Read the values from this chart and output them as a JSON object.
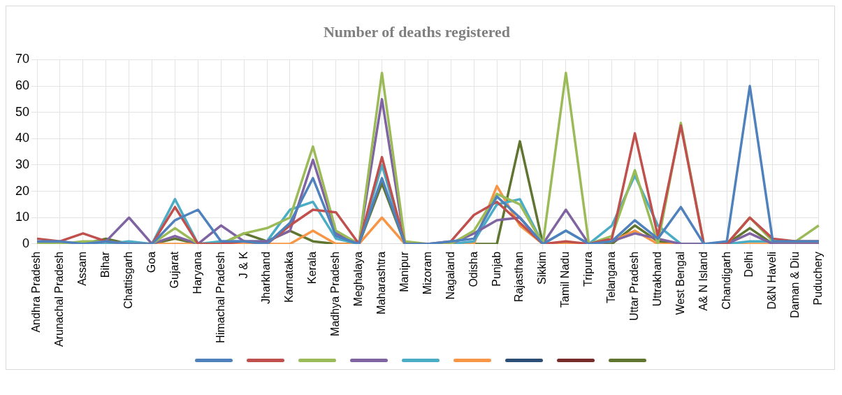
{
  "chart_data": {
    "type": "line",
    "title": "Number of deaths registered",
    "categories": [
      "Andhra Pradesh",
      "Arunachal Pradesh",
      "Assam",
      "Bihar",
      "Chattisgarh",
      "Goa",
      "Gujarat",
      "Haryana",
      "Himachal Pradesh",
      "J & K",
      "Jharkhand",
      "Karnataka",
      "Kerala",
      "Madhya Pradesh",
      "Meghalaya",
      "Maharashtra",
      "Manipur",
      "Mizoram",
      "Nagaland",
      "Odisha",
      "Punjab",
      "Rajasthan",
      "Sikkim",
      "Tamil Nadu",
      "Tripura",
      "Telangana",
      "Uttar Pradesh",
      "Uttrakhand",
      "West Bengal",
      "A& N Island",
      "Chandigarh",
      "Delhi",
      "D&N Haveli",
      "Daman & Diu",
      "Puduchery"
    ],
    "series": [
      {
        "color": "#4f81bd",
        "values": [
          1,
          1,
          0,
          1,
          0,
          0,
          9,
          13,
          1,
          1,
          0,
          8,
          25,
          3,
          0,
          25,
          0,
          0,
          1,
          2,
          18,
          10,
          0,
          5,
          0,
          1,
          9,
          2,
          14,
          0,
          1,
          60,
          1,
          1,
          1
        ]
      },
      {
        "color": "#c0504d",
        "values": [
          2,
          1,
          4,
          1,
          0,
          0,
          14,
          0,
          0,
          1,
          0,
          7,
          13,
          12,
          0,
          33,
          0,
          0,
          1,
          11,
          16,
          8,
          0,
          1,
          0,
          2,
          42,
          3,
          45,
          0,
          0,
          10,
          2,
          1,
          1
        ]
      },
      {
        "color": "#9bbb59",
        "values": [
          0,
          0,
          1,
          1,
          0,
          0,
          6,
          0,
          0,
          4,
          6,
          10,
          37,
          5,
          0,
          65,
          1,
          0,
          0,
          5,
          19,
          15,
          0,
          65,
          0,
          3,
          28,
          0,
          46,
          0,
          0,
          10,
          1,
          1,
          7
        ]
      },
      {
        "color": "#8064a2",
        "values": [
          0,
          0,
          0,
          1,
          10,
          0,
          3,
          0,
          7,
          1,
          1,
          5,
          32,
          4,
          0,
          55,
          0,
          0,
          0,
          4,
          9,
          10,
          0,
          13,
          0,
          1,
          4,
          2,
          0,
          0,
          0,
          4,
          0,
          0,
          0
        ]
      },
      {
        "color": "#4bacc6",
        "values": [
          0,
          0,
          0,
          0,
          1,
          0,
          17,
          0,
          1,
          1,
          1,
          13,
          16,
          2,
          0,
          30,
          0,
          0,
          0,
          1,
          15,
          17,
          0,
          5,
          0,
          7,
          26,
          7,
          0,
          0,
          0,
          1,
          1,
          1,
          1
        ]
      },
      {
        "color": "#f79646",
        "values": [
          null,
          null,
          null,
          null,
          0,
          0,
          0,
          0,
          0,
          0,
          0,
          0,
          5,
          0,
          0,
          10,
          0,
          0,
          0,
          0,
          22,
          7,
          0,
          0,
          0,
          1,
          5,
          0,
          0,
          0,
          0,
          0,
          0,
          0,
          1
        ]
      },
      {
        "color": "#2c4d75",
        "values": [
          null,
          null,
          null,
          null,
          null,
          null,
          null,
          null,
          null,
          null,
          null,
          null,
          null,
          null,
          null,
          null,
          null,
          null,
          null,
          null,
          null,
          null,
          null,
          null,
          null,
          null,
          null,
          null,
          null,
          null,
          null,
          null,
          null,
          null,
          null
        ]
      },
      {
        "color": "#772c2a",
        "values": [
          null,
          null,
          null,
          null,
          null,
          null,
          null,
          null,
          null,
          null,
          null,
          null,
          null,
          null,
          null,
          null,
          null,
          null,
          null,
          null,
          null,
          null,
          null,
          null,
          null,
          null,
          null,
          null,
          null,
          null,
          null,
          null,
          null,
          null,
          null
        ]
      },
      {
        "color": "#5f7530",
        "values": [
          0,
          0,
          0,
          2,
          0,
          0,
          2,
          0,
          0,
          4,
          1,
          5,
          1,
          0,
          0,
          23,
          0,
          0,
          0,
          0,
          0,
          39,
          0,
          0,
          0,
          0,
          7,
          1,
          0,
          0,
          0,
          6,
          0,
          0,
          0
        ]
      }
    ],
    "ylim": [
      0,
      70
    ],
    "yticks": [
      0,
      10,
      20,
      30,
      40,
      50,
      60,
      70
    ],
    "grid": true,
    "marker": "none",
    "line_style": "solid"
  }
}
